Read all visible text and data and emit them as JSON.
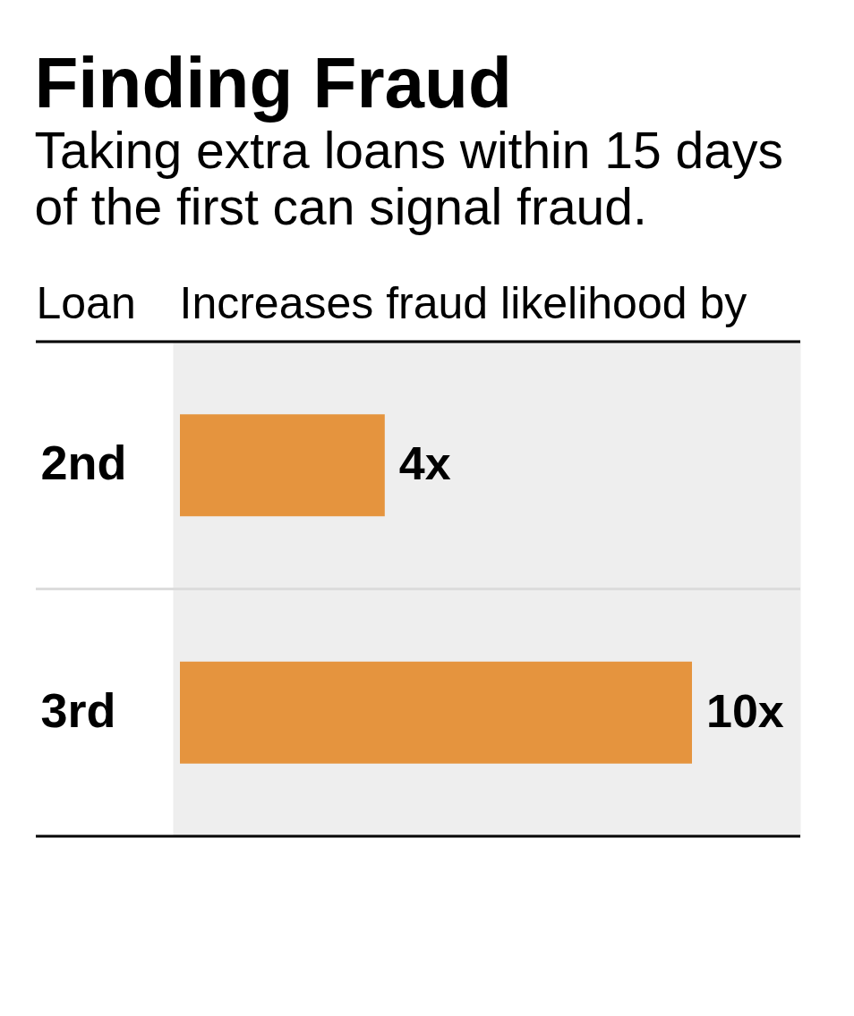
{
  "chart_data": {
    "type": "bar",
    "orientation": "horizontal",
    "title": "Finding Fraud",
    "subtitle": "Taking extra loans within 15 days\nof the first can signal fraud.",
    "ylabel": "Loan",
    "xlabel": "Increases fraud likelihood by",
    "categories": [
      "2nd",
      "3rd"
    ],
    "values": [
      4,
      10
    ],
    "color": "#e5943e",
    "value_labels": [
      "4x",
      "10x"
    ],
    "grid": "y",
    "tick_labels": "y"
  }
}
